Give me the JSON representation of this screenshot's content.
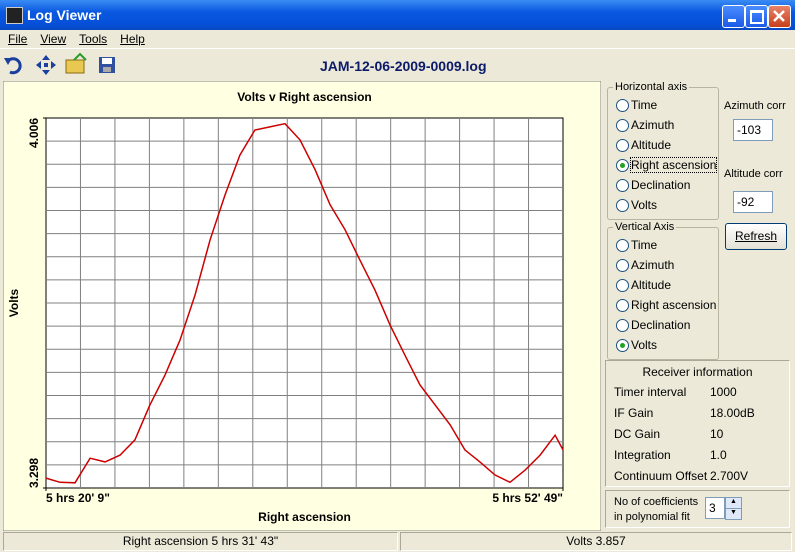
{
  "window": {
    "title": "Log Viewer"
  },
  "menu": [
    "File",
    "View",
    "Tools",
    "Help"
  ],
  "toolbar": {
    "file_name": "JAM-12-06-2009-0009.log"
  },
  "chart_data": {
    "type": "line",
    "title": "Volts v Right ascension",
    "x_label": "Right ascension",
    "y_label": "Volts",
    "color": "#cc0000",
    "grid": true,
    "xlim": [
      19209,
      21169
    ],
    "xticks": [
      {
        "value": 19209,
        "label": "5 hrs 20' 9\""
      },
      {
        "value": 21169,
        "label": "5 hrs 52' 49\""
      }
    ],
    "ylim": [
      3.298,
      4.006
    ],
    "yticks": [
      3.298,
      4.006
    ],
    "x": [
      19209,
      19262,
      19319,
      19376,
      19433,
      19490,
      19546,
      19603,
      19660,
      19717,
      19774,
      19831,
      19888,
      19944,
      20001,
      20058,
      20115,
      20172,
      20229,
      20286,
      20343,
      20399,
      20456,
      20513,
      20570,
      20627,
      20684,
      20741,
      20797,
      20854,
      20911,
      20968,
      21025,
      21082,
      21139,
      21169
    ],
    "values": [
      3.317,
      3.309,
      3.308,
      3.355,
      3.348,
      3.361,
      3.39,
      3.457,
      3.514,
      3.581,
      3.667,
      3.773,
      3.859,
      3.935,
      3.983,
      3.989,
      3.995,
      3.964,
      3.907,
      3.84,
      3.792,
      3.734,
      3.677,
      3.61,
      3.552,
      3.495,
      3.457,
      3.419,
      3.371,
      3.348,
      3.323,
      3.309,
      3.332,
      3.361,
      3.399,
      3.371
    ]
  },
  "horizontal_axis": {
    "title": "Horizontal axis",
    "options": [
      "Time",
      "Azimuth",
      "Altitude",
      "Right ascension",
      "Declination",
      "Volts"
    ],
    "selected": 3
  },
  "vertical_axis": {
    "title": "Vertical Axis",
    "options": [
      "Time",
      "Azimuth",
      "Altitude",
      "Right ascension",
      "Declination",
      "Volts"
    ],
    "selected": 5
  },
  "azimuth_corr": {
    "label": "Azimuth corr",
    "value": "-103"
  },
  "altitude_corr": {
    "label": "Altitude corr",
    "value": "-92"
  },
  "refresh": "Refresh",
  "receiver": {
    "title": "Receiver information",
    "rows": [
      [
        "Timer interval",
        "1000"
      ],
      [
        "IF Gain",
        "18.00dB"
      ],
      [
        "DC Gain",
        "10"
      ],
      [
        "Integration",
        "1.0"
      ],
      [
        "Continuum Offset",
        "2.700V"
      ]
    ]
  },
  "coefficients": {
    "label": [
      "No of coefficients",
      "in polynomial fit"
    ],
    "value": "3"
  },
  "status": [
    "Right ascension 5 hrs 31' 43\"",
    "Volts 3.857"
  ]
}
